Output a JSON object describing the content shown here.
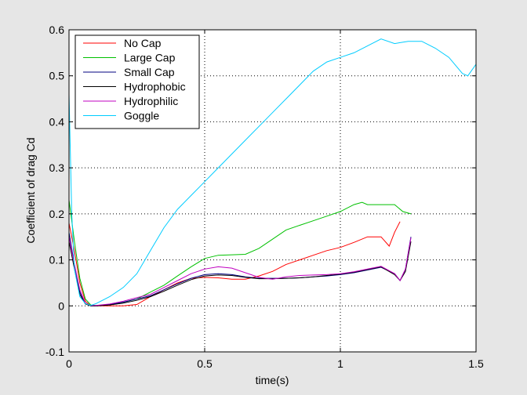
{
  "chart_data": {
    "type": "line",
    "xlabel": "time(s)",
    "ylabel": "Coefficient of drag Cd",
    "xlim": [
      0,
      1.5
    ],
    "ylim": [
      -0.1,
      0.6
    ],
    "xticks": [
      "0",
      "0.5",
      "1",
      "1.5"
    ],
    "yticks": [
      "-0.1",
      "0",
      "0.1",
      "0.2",
      "0.3",
      "0.4",
      "0.5",
      "0.6"
    ],
    "grid": true,
    "legend_position": "top-left",
    "series": [
      {
        "name": "No Cap",
        "color": "#ff0000",
        "x": [
          0,
          0.02,
          0.04,
          0.06,
          0.08,
          0.1,
          0.15,
          0.2,
          0.25,
          0.3,
          0.35,
          0.4,
          0.45,
          0.5,
          0.55,
          0.6,
          0.65,
          0.7,
          0.75,
          0.8,
          0.85,
          0.9,
          0.95,
          1.0,
          1.05,
          1.1,
          1.15,
          1.18,
          1.2,
          1.22
        ],
        "y": [
          0.18,
          0.12,
          0.05,
          0.01,
          0.0,
          0.0,
          0.0,
          0.0,
          0.003,
          0.02,
          0.035,
          0.05,
          0.06,
          0.062,
          0.061,
          0.058,
          0.058,
          0.065,
          0.075,
          0.09,
          0.1,
          0.11,
          0.12,
          0.127,
          0.138,
          0.15,
          0.15,
          0.13,
          0.16,
          0.183
        ]
      },
      {
        "name": "Large Cap",
        "color": "#00c000",
        "x": [
          0,
          0.02,
          0.04,
          0.06,
          0.08,
          0.1,
          0.15,
          0.2,
          0.25,
          0.3,
          0.35,
          0.4,
          0.45,
          0.5,
          0.55,
          0.6,
          0.65,
          0.7,
          0.75,
          0.8,
          0.85,
          0.9,
          0.95,
          1.0,
          1.05,
          1.08,
          1.1,
          1.15,
          1.2,
          1.23,
          1.26
        ],
        "y": [
          0.23,
          0.14,
          0.06,
          0.015,
          0.002,
          0.001,
          0.002,
          0.008,
          0.015,
          0.03,
          0.045,
          0.065,
          0.085,
          0.103,
          0.11,
          0.111,
          0.112,
          0.125,
          0.145,
          0.165,
          0.175,
          0.185,
          0.195,
          0.205,
          0.22,
          0.225,
          0.22,
          0.22,
          0.22,
          0.205,
          0.2
        ]
      },
      {
        "name": "Small Cap",
        "color": "#000080",
        "x": [
          0,
          0.02,
          0.04,
          0.06,
          0.08,
          0.1,
          0.15,
          0.2,
          0.25,
          0.3,
          0.35,
          0.4,
          0.45,
          0.5,
          0.55,
          0.6,
          0.65,
          0.7,
          0.75,
          0.8,
          0.85,
          0.9,
          0.95,
          1.0,
          1.05,
          1.1,
          1.15,
          1.2,
          1.22,
          1.24,
          1.26
        ],
        "y": [
          0.16,
          0.09,
          0.03,
          0.005,
          0.0,
          0.0,
          0.003,
          0.008,
          0.015,
          0.022,
          0.035,
          0.048,
          0.06,
          0.068,
          0.07,
          0.068,
          0.063,
          0.06,
          0.06,
          0.06,
          0.061,
          0.063,
          0.065,
          0.068,
          0.072,
          0.078,
          0.084,
          0.07,
          0.055,
          0.08,
          0.15
        ]
      },
      {
        "name": "Hydrophobic",
        "color": "#000000",
        "x": [
          0,
          0.02,
          0.04,
          0.06,
          0.08,
          0.1,
          0.15,
          0.2,
          0.25,
          0.3,
          0.35,
          0.4,
          0.45,
          0.5,
          0.55,
          0.6,
          0.65,
          0.7,
          0.75,
          0.8,
          0.85,
          0.9,
          0.95,
          1.0,
          1.05,
          1.1,
          1.15,
          1.2,
          1.22,
          1.24,
          1.26
        ],
        "y": [
          0.14,
          0.08,
          0.025,
          0.004,
          0.0,
          0.0,
          0.002,
          0.006,
          0.012,
          0.02,
          0.032,
          0.045,
          0.057,
          0.065,
          0.067,
          0.066,
          0.062,
          0.059,
          0.059,
          0.06,
          0.061,
          0.063,
          0.066,
          0.069,
          0.073,
          0.079,
          0.085,
          0.068,
          0.055,
          0.075,
          0.14
        ]
      },
      {
        "name": "Hydrophilic",
        "color": "#c000c0",
        "x": [
          0,
          0.02,
          0.04,
          0.06,
          0.08,
          0.1,
          0.15,
          0.2,
          0.25,
          0.3,
          0.35,
          0.4,
          0.45,
          0.5,
          0.55,
          0.6,
          0.65,
          0.7,
          0.75,
          0.8,
          0.85,
          0.9,
          0.95,
          1.0,
          1.05,
          1.1,
          1.15,
          1.2,
          1.22,
          1.24,
          1.26
        ],
        "y": [
          0.15,
          0.09,
          0.035,
          0.006,
          0.001,
          0.001,
          0.004,
          0.01,
          0.018,
          0.025,
          0.04,
          0.055,
          0.07,
          0.08,
          0.085,
          0.082,
          0.072,
          0.062,
          0.058,
          0.063,
          0.066,
          0.067,
          0.068,
          0.07,
          0.074,
          0.08,
          0.086,
          0.07,
          0.055,
          0.08,
          0.148
        ]
      },
      {
        "name": "Goggle",
        "color": "#00ccff",
        "x": [
          0,
          0.01,
          0.02,
          0.04,
          0.06,
          0.08,
          0.1,
          0.15,
          0.2,
          0.25,
          0.3,
          0.35,
          0.4,
          0.45,
          0.5,
          0.55,
          0.6,
          0.65,
          0.7,
          0.75,
          0.8,
          0.85,
          0.9,
          0.95,
          1.0,
          1.05,
          1.1,
          1.15,
          1.2,
          1.25,
          1.3,
          1.35,
          1.4,
          1.45,
          1.47,
          1.5
        ],
        "y": [
          0.46,
          0.2,
          0.08,
          0.02,
          0.005,
          0.001,
          0.005,
          0.02,
          0.04,
          0.07,
          0.12,
          0.17,
          0.21,
          0.24,
          0.27,
          0.3,
          0.33,
          0.36,
          0.39,
          0.42,
          0.45,
          0.48,
          0.51,
          0.53,
          0.54,
          0.55,
          0.565,
          0.58,
          0.57,
          0.575,
          0.575,
          0.56,
          0.54,
          0.505,
          0.5,
          0.525
        ]
      }
    ]
  }
}
